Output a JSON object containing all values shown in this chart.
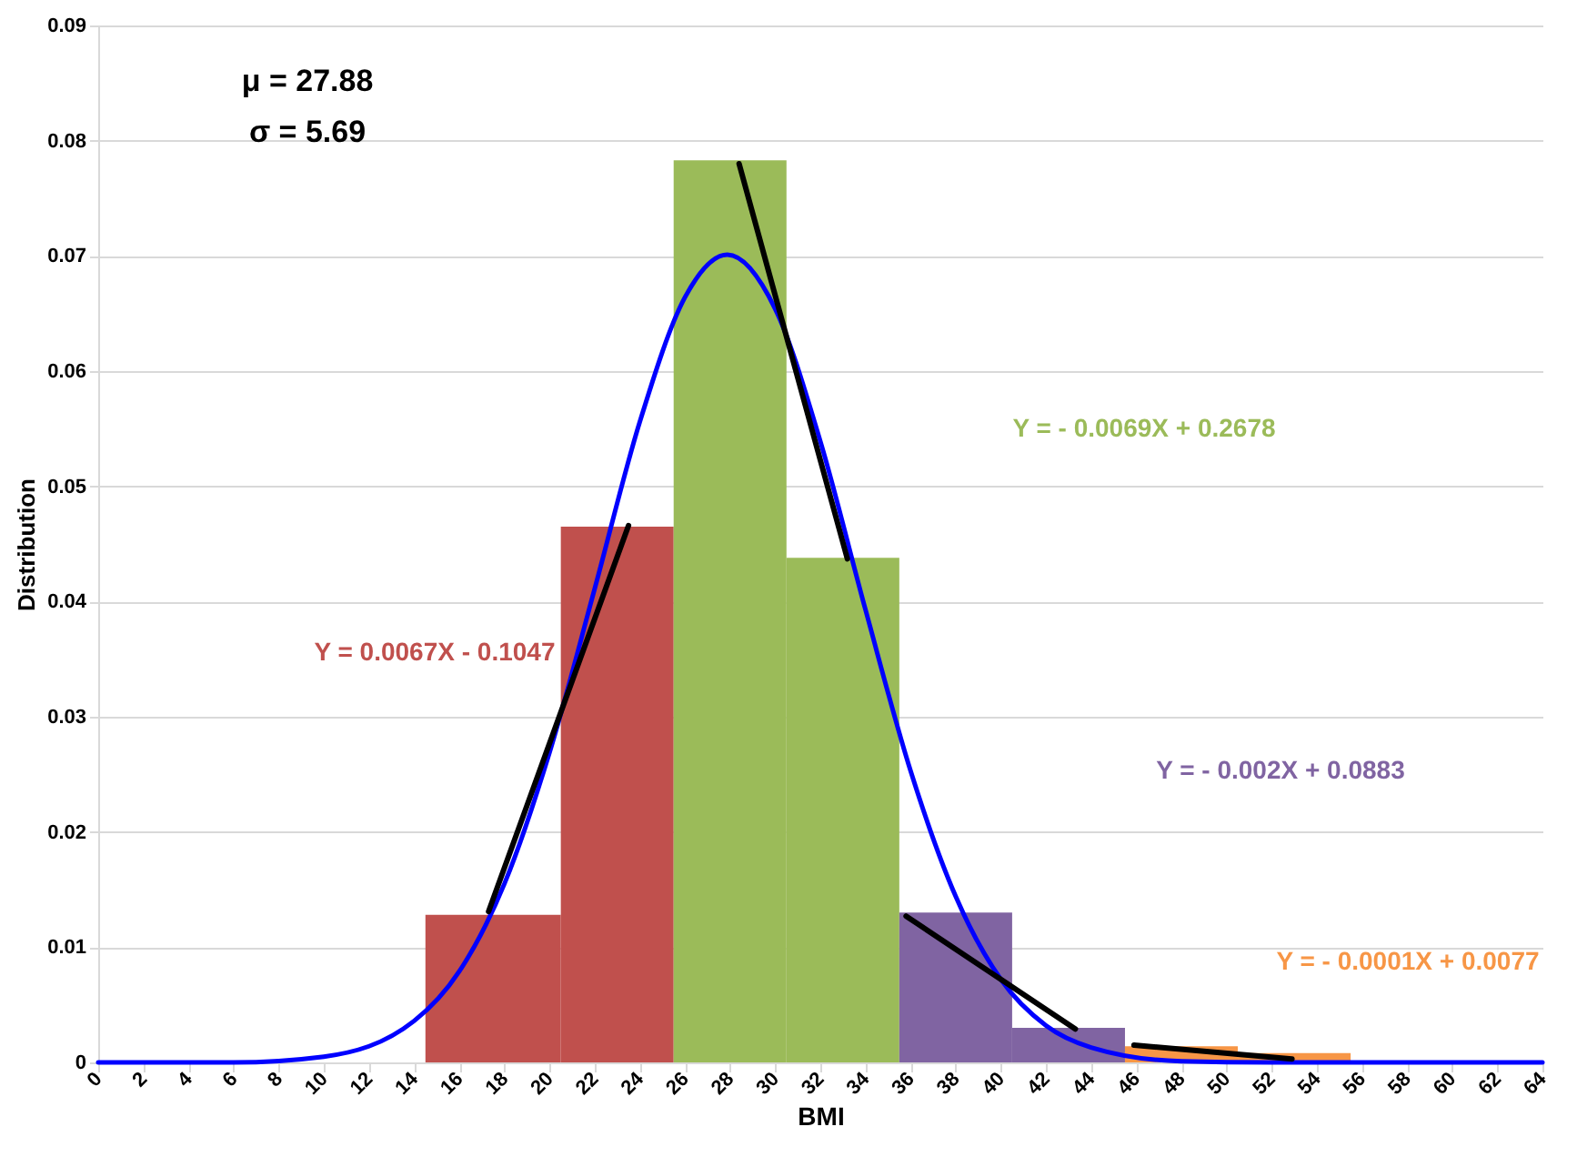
{
  "chart_data": {
    "type": "histogram",
    "xlabel": "BMI",
    "ylabel": "Distribution",
    "bins": [
      14.5,
      20.5,
      25.5,
      30.5,
      35.5,
      40.5,
      45.5,
      50.5,
      55.5
    ],
    "values": [
      0.0128,
      0.0465,
      0.0783,
      0.0438,
      0.013,
      0.003,
      0.0014,
      0.0008
    ],
    "colors": [
      "#c0504d",
      "#c0504d",
      "#9bbb59",
      "#9bbb59",
      "#8064a2",
      "#8064a2",
      "#f79646",
      "#f79646"
    ],
    "series": [
      {
        "type": "line",
        "color": "#0000ff",
        "x": [
          0,
          6,
          10,
          14,
          16,
          18,
          20,
          22,
          24,
          26,
          27.88,
          30,
          32,
          34,
          36,
          38,
          40,
          42,
          44,
          48,
          52,
          56,
          64
        ],
        "values": [
          0,
          0,
          0.0005,
          0.0036,
          0.0079,
          0.0155,
          0.0269,
          0.0411,
          0.0556,
          0.0664,
          0.0701,
          0.0654,
          0.0539,
          0.0393,
          0.0253,
          0.0144,
          0.0072,
          0.0032,
          0.0013,
          0.0001,
          0,
          0,
          0
        ]
      },
      {
        "type": "line",
        "color": "#000000",
        "x": [
          17.3,
          23.5
        ],
        "values": [
          0.0131,
          0.0466
        ]
      },
      {
        "type": "line",
        "color": "#000000",
        "x": [
          28.4,
          33.2
        ],
        "values": [
          0.078,
          0.0437
        ]
      },
      {
        "type": "line",
        "color": "#000000",
        "x": [
          35.8,
          43.3
        ],
        "values": [
          0.0127,
          0.0029
        ]
      },
      {
        "type": "line",
        "color": "#000000",
        "x": [
          45.9,
          52.9
        ],
        "values": [
          0.0015,
          0.0003
        ]
      }
    ],
    "annotations": [
      "μ = 27.88",
      "σ = 5.69",
      "Y = 0.0067X - 0.1047",
      "Y = - 0.0069X + 0.2678",
      "Y = - 0.002X + 0.0883",
      "Y = - 0.0001X + 0.0077"
    ],
    "xlim": [
      0,
      64
    ],
    "xticks": [
      0,
      2,
      4,
      6,
      8,
      10,
      12,
      14,
      16,
      18,
      20,
      22,
      24,
      26,
      28,
      30,
      32,
      34,
      36,
      38,
      40,
      42,
      44,
      46,
      48,
      50,
      52,
      54,
      56,
      58,
      60,
      62,
      64
    ],
    "ylim": [
      0,
      0.09
    ],
    "yticks": [
      0,
      0.01,
      0.02,
      0.03,
      0.04,
      0.05,
      0.06,
      0.07,
      0.08,
      0.09
    ],
    "grid": "y"
  }
}
